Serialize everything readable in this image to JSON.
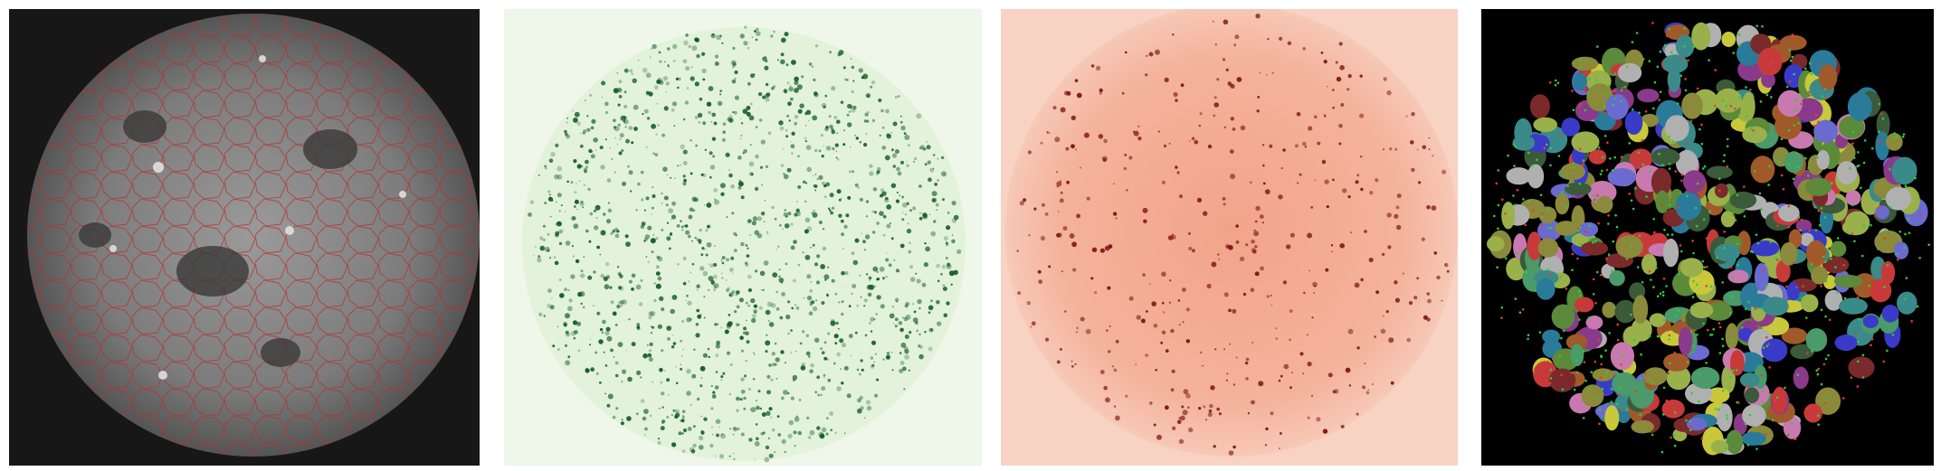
{
  "figure": {
    "panels": [
      {
        "id": "raw-image",
        "colors": {
          "background": "#171717",
          "tissue": "#8a8a8a",
          "outline": "#b43030"
        }
      },
      {
        "id": "green-channel",
        "colors": {
          "background": "#eef7e9",
          "signal": "#0f5a22"
        }
      },
      {
        "id": "red-channel",
        "colors": {
          "background": "#f8d2c2",
          "tissue": "#f0a88c",
          "signal": "#7a1010"
        }
      },
      {
        "id": "segmentation",
        "colors": {
          "background": "#000000",
          "dot_green": "#2ecc40",
          "dot_red": "#e04030"
        }
      }
    ]
  }
}
